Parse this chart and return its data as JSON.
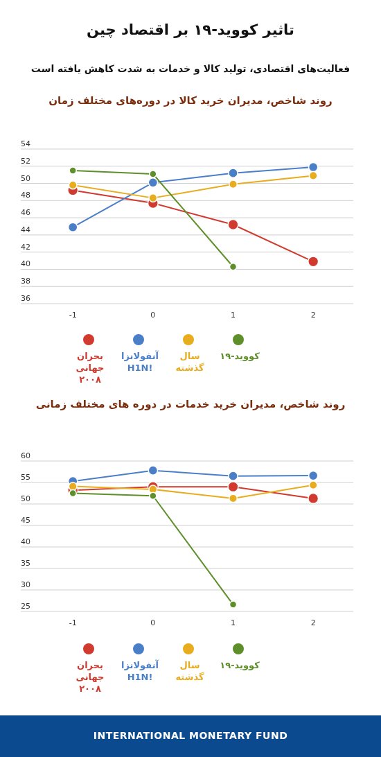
{
  "chart_data": [
    {
      "type": "line",
      "title": "تاثیر کووید-۱۹ بر اقتصاد چین",
      "subtitle": "فعالیت‌های اقتصادی، تولید کالا و خدمات به شدت کاهش یافته است",
      "annotations": [
        "روند شاخص،  مدیران خرید کالا  در دوره‌های مختلف زمان"
      ],
      "x": [
        -1,
        0,
        1,
        2
      ],
      "xlim": [
        -1.65,
        2.5
      ],
      "xticks": [
        -1,
        0,
        1,
        2
      ],
      "ylim": [
        36,
        54
      ],
      "yticks": [
        36,
        38,
        40,
        42,
        44,
        46,
        48,
        50,
        52,
        54
      ],
      "grid": "y",
      "legend": "bottom",
      "marker": "circle",
      "line_style": "solid",
      "series": [
        {
          "name": "بحران جهانی ۲۰۰۸",
          "color": "#d03a2f",
          "values": [
            49.2,
            47.7,
            45.2,
            40.9
          ]
        },
        {
          "name": "آنفولانزا H1N!",
          "color": "#4a7fc8",
          "values": [
            44.9,
            50.1,
            51.2,
            51.9
          ]
        },
        {
          "name": "سال گذشته",
          "color": "#e8ad1f",
          "values": [
            49.8,
            48.3,
            49.9,
            50.9
          ]
        },
        {
          "name": "کووید-۱۹",
          "color": "#5e8f2a",
          "values": [
            51.5,
            51.1,
            40.3,
            null
          ]
        }
      ]
    },
    {
      "type": "line",
      "title": "روند شاخص، مدیران خرید خدمات در دوره های مختلف زمانی",
      "annotations": [
        "INTERNATIONAL MONETARY FUND"
      ],
      "x": [
        -1,
        0,
        1,
        2
      ],
      "xlim": [
        -1.65,
        2.5
      ],
      "xticks": [
        -1,
        0,
        1,
        2
      ],
      "ylim": [
        25,
        60
      ],
      "yticks": [
        25,
        30,
        35,
        40,
        45,
        50,
        55,
        60
      ],
      "grid": "y",
      "legend": "bottom",
      "marker": "circle",
      "line_style": "solid",
      "series": [
        {
          "name": "بحران جهانی ۲۰۰۸",
          "color": "#d03a2f",
          "values": [
            53.2,
            54.0,
            54.0,
            51.3
          ]
        },
        {
          "name": "آنفولانزا H1N!",
          "color": "#4a7fc8",
          "values": [
            55.3,
            57.8,
            56.5,
            56.6
          ]
        },
        {
          "name": "سال گذشته",
          "color": "#e8ad1f",
          "values": [
            54.1,
            53.4,
            51.3,
            54.4
          ]
        },
        {
          "name": "کووید-۱۹",
          "color": "#5e8f2a",
          "values": [
            52.5,
            51.9,
            26.6,
            null
          ]
        }
      ]
    }
  ]
}
